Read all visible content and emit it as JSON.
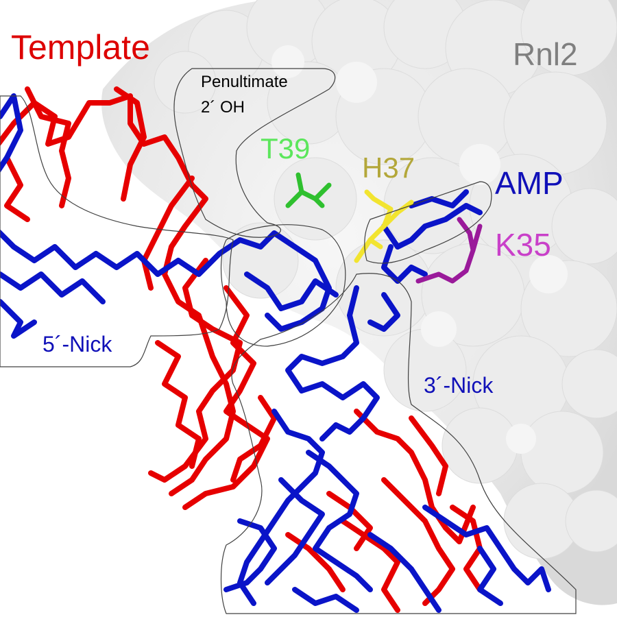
{
  "figure": {
    "labels": {
      "template": "Template",
      "rnl2": "Rnl2",
      "penultimate_line1": "Penultimate",
      "penultimate_line2": "2´ OH",
      "t39": "T39",
      "h37": "H37",
      "amp": "AMP",
      "k35": "K35",
      "nick5": "5´-Nick",
      "nick3": "3´-Nick"
    },
    "colors": {
      "template": "#dd0000",
      "rnl2": "#7f7f7f",
      "penultimate": "#000000",
      "t39": "#5ce65c",
      "h37": "#b3a73a",
      "amp": "#1010b8",
      "k35": "#c940c9",
      "nick5": "#1010b8",
      "nick3": "#1010b8",
      "protein_surface": "#e6e6e6",
      "rna_red_strand": "#e60000",
      "rna_blue_strand": "#0a14c8",
      "t39_sticks": "#2fc02f",
      "h37_sticks": "#f2e430",
      "k35_sticks": "#9a1a9a",
      "outline": "#404040"
    }
  }
}
